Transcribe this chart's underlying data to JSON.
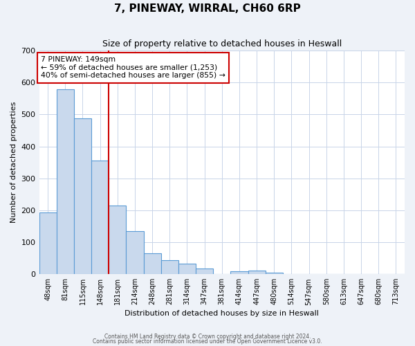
{
  "title": "7, PINEWAY, WIRRAL, CH60 6RP",
  "subtitle": "Size of property relative to detached houses in Heswall",
  "xlabel": "Distribution of detached houses by size in Heswall",
  "ylabel": "Number of detached properties",
  "bin_labels": [
    "48sqm",
    "81sqm",
    "115sqm",
    "148sqm",
    "181sqm",
    "214sqm",
    "248sqm",
    "281sqm",
    "314sqm",
    "347sqm",
    "381sqm",
    "414sqm",
    "447sqm",
    "480sqm",
    "514sqm",
    "547sqm",
    "580sqm",
    "613sqm",
    "647sqm",
    "680sqm",
    "713sqm"
  ],
  "bar_heights": [
    193,
    578,
    487,
    355,
    215,
    135,
    65,
    44,
    34,
    17,
    0,
    10,
    12,
    5,
    0,
    0,
    0,
    0,
    0,
    0,
    0
  ],
  "bar_color": "#c9d9ed",
  "bar_edge_color": "#5b9bd5",
  "vline_index": 3,
  "vline_color": "#cc0000",
  "annotation_box_text": "7 PINEWAY: 149sqm\n← 59% of detached houses are smaller (1,253)\n40% of semi-detached houses are larger (855) →",
  "annotation_box_color": "#cc0000",
  "ylim": [
    0,
    700
  ],
  "yticks": [
    0,
    100,
    200,
    300,
    400,
    500,
    600,
    700
  ],
  "footer_line1": "Contains HM Land Registry data © Crown copyright and database right 2024.",
  "footer_line2": "Contains public sector information licensed under the Open Government Licence v3.0.",
  "bg_color": "#eef2f8",
  "plot_bg_color": "#ffffff",
  "grid_color": "#c8d4e8",
  "title_fontsize": 11,
  "subtitle_fontsize": 9
}
